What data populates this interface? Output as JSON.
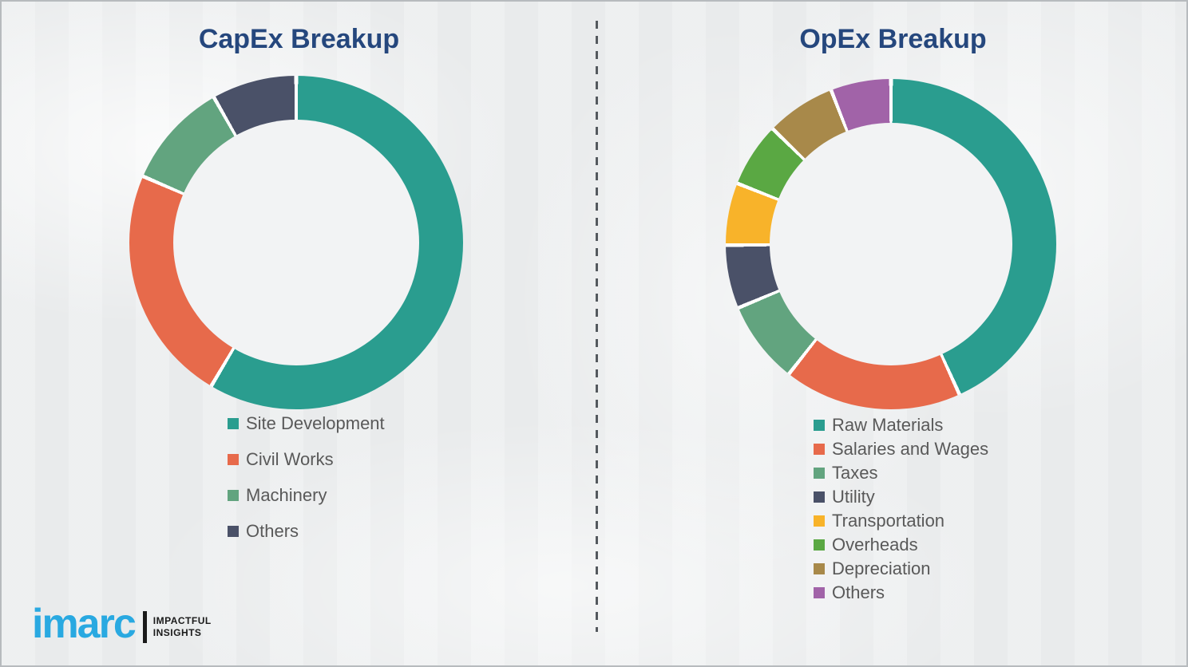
{
  "page": {
    "background_color": "#eceeef",
    "divider_color": "#54595e",
    "title_color": "#25477d",
    "legend_text_color": "#595959",
    "donut_hole_color": "#f2f3f4",
    "segment_gap_color": "#ffffff"
  },
  "branding": {
    "logo_text": "imarc",
    "logo_color": "#29a9e1",
    "tagline_line1": "IMPACTFUL",
    "tagline_line2": "INSIGHTS"
  },
  "chart_data": [
    {
      "type": "pie",
      "variant": "donut",
      "title": "CapEx Breakup",
      "units": "percent",
      "start_angle_deg": 0,
      "direction": "clockwise",
      "legend_position": "bottom-left",
      "categories": [
        "Site Development",
        "Civil Works",
        "Machinery",
        "Others"
      ],
      "values": [
        58.5,
        23.0,
        10.3,
        8.2
      ],
      "colors": [
        "#2a9d8f",
        "#e76a4b",
        "#62a47f",
        "#4a5168"
      ]
    },
    {
      "type": "pie",
      "variant": "donut",
      "title": "OpEx Breakup",
      "units": "percent",
      "start_angle_deg": 0,
      "direction": "clockwise",
      "legend_position": "bottom-left",
      "categories": [
        "Raw Materials",
        "Salaries and Wages",
        "Taxes",
        "Utility",
        "Transportation",
        "Overheads",
        "Depreciation",
        "Others"
      ],
      "values": [
        43.2,
        17.4,
        8.1,
        6.2,
        6.1,
        6.3,
        6.8,
        5.9
      ],
      "colors": [
        "#2a9d8f",
        "#e76a4b",
        "#62a47f",
        "#4a5168",
        "#f8b32a",
        "#5aa843",
        "#a8894a",
        "#a163a8"
      ]
    }
  ]
}
